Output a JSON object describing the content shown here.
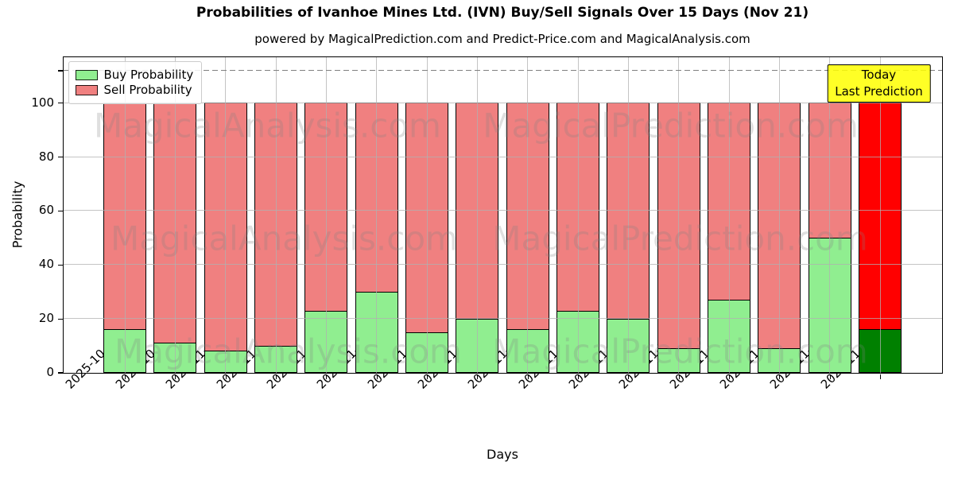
{
  "title": "Probabilities of Ivanhoe Mines Ltd. (IVN) Buy/Sell Signals Over 15 Days (Nov 21)",
  "subtitle": "powered by MagicalPrediction.com and Predict-Price.com and MagicalAnalysis.com",
  "annotation": {
    "line1": "Today",
    "line2": "Last Prediction",
    "bg_color": "#ffff00"
  },
  "watermarks": {
    "left_text": "MagicalAnalysis.com",
    "right_text": "MagicalPrediction.com",
    "color": "rgba(128,128,128,0.25)"
  },
  "colors": {
    "grid": "#b0b0b0",
    "dashed_line": "#808080",
    "axis": "#000000"
  },
  "chart_data": {
    "type": "bar",
    "stacked": true,
    "title": "Probabilities of Ivanhoe Mines Ltd. (IVN) Buy/Sell Signals Over 15 Days (Nov 21)",
    "xlabel": "Days",
    "ylabel": "Probability",
    "categories": [
      "2025-10-30",
      "2025-10-31",
      "2025-11-03",
      "2025-11-04",
      "2025-11-05",
      "2025-11-06",
      "2025-11-07",
      "2025-11-10",
      "2025-11-11",
      "2025-11-12",
      "2025-11-13",
      "2025-11-14",
      "2025-11-17",
      "2025-11-18",
      "2025-11-19",
      "2025-11-20"
    ],
    "series": [
      {
        "name": "Buy Probability",
        "color": "#90ee90",
        "values": [
          16,
          11,
          8,
          10,
          23,
          30,
          15,
          20,
          16,
          23,
          20,
          9,
          27,
          9,
          50,
          16
        ]
      },
      {
        "name": "Sell Probability",
        "color": "#f08080",
        "values": [
          84,
          89,
          92,
          90,
          77,
          70,
          85,
          80,
          84,
          77,
          80,
          91,
          73,
          91,
          50,
          84
        ]
      }
    ],
    "last_bar": {
      "date": "2025-11-20",
      "buy_color": "#008000",
      "sell_color": "#ff0000"
    },
    "ylim": [
      0,
      117
    ],
    "yticks": [
      0,
      20,
      40,
      60,
      80,
      100
    ],
    "dashed_line_y": 112,
    "grid": true,
    "legend_position": "upper left"
  }
}
